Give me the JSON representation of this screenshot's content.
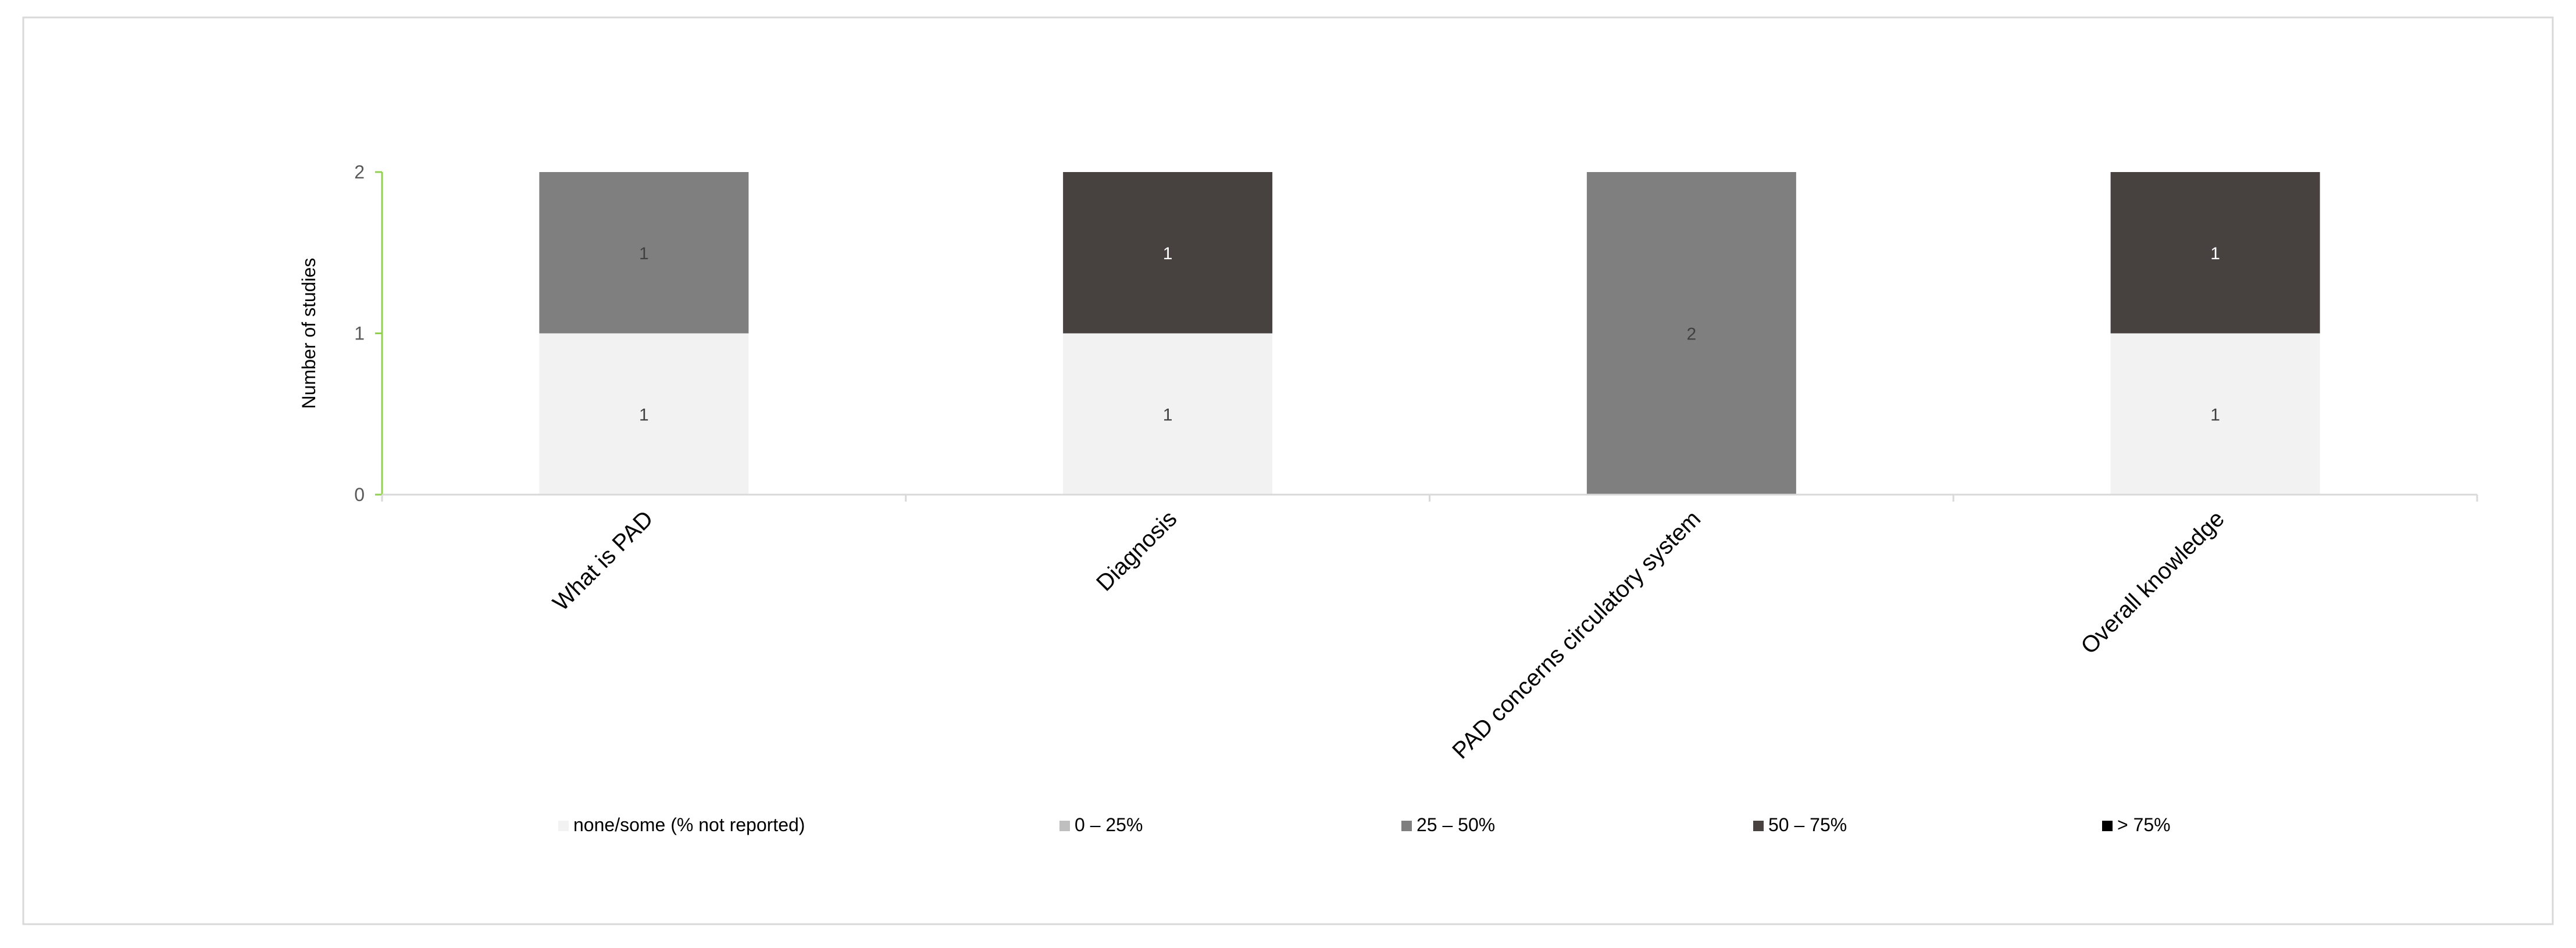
{
  "chart_data": {
    "type": "bar",
    "stacked": true,
    "title": "",
    "xlabel": "",
    "ylabel": "Number of studies",
    "ylim": [
      0,
      2
    ],
    "yticks": [
      0,
      1,
      2
    ],
    "categories": [
      "What is PAD",
      "Diagnosis",
      "PAD concerns circulatory system",
      "Overall knowledge"
    ],
    "series": [
      {
        "name": "none/some (% not reported)",
        "color": "#f2f2f2",
        "values": [
          1,
          1,
          0,
          1
        ]
      },
      {
        "name": "0 – 25%",
        "color": "#bfbfbf",
        "values": [
          0,
          0,
          0,
          0
        ]
      },
      {
        "name": "25 – 50%",
        "color": "#7f7f7f",
        "values": [
          1,
          0,
          2,
          0
        ]
      },
      {
        "name": "50 – 75%",
        "color": "#474240",
        "values": [
          0,
          1,
          0,
          1
        ]
      },
      {
        "name": "> 75%",
        "color": "#000000",
        "values": [
          0,
          0,
          0,
          0
        ]
      }
    ],
    "legend_position": "bottom",
    "grid": false,
    "colors": {
      "axis_y": "#92d050",
      "axis_x": "#d9d9d9",
      "frame": "#d9d9d9",
      "label_on_light": "#404040",
      "label_on_dark": "#ffffff"
    }
  }
}
